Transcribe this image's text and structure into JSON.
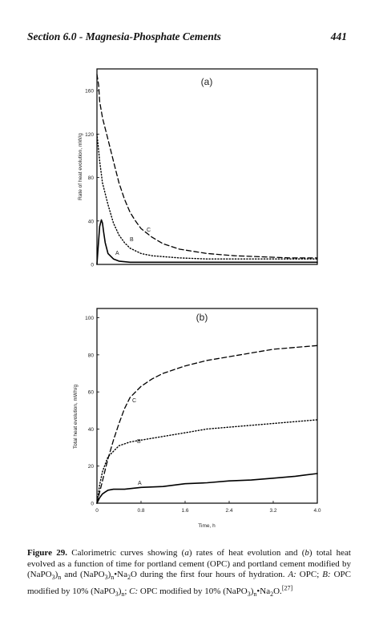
{
  "header": {
    "section": "Section 6.0 - Magnesia-Phosphate Cements",
    "page_number": "441"
  },
  "figure": {
    "caption_label": "Figure 29.",
    "caption_segments": [
      {
        "t": "Calorimetric curves showing ("
      },
      {
        "t": "a",
        "i": true
      },
      {
        "t": ") rates of heat evolution and ("
      },
      {
        "t": "b",
        "i": true
      },
      {
        "t": ") total heat evolved as a function of time for portland cement (OPC) and portland cement modified by (NaPO"
      },
      {
        "t": "3",
        "sub": true
      },
      {
        "t": ")"
      },
      {
        "t": "n",
        "sub": true
      },
      {
        "t": " and (NaPO"
      },
      {
        "t": "3",
        "sub": true
      },
      {
        "t": ")"
      },
      {
        "t": "n",
        "sub": true
      },
      {
        "t": "•Na"
      },
      {
        "t": "2",
        "sub": true
      },
      {
        "t": "O during the first four hours of hydration. "
      },
      {
        "t": "A:",
        "i": true
      },
      {
        "t": " OPC; "
      },
      {
        "t": "B:",
        "i": true
      },
      {
        "t": " OPC modified by 10% (NaPO"
      },
      {
        "t": "3",
        "sub": true
      },
      {
        "t": ")"
      },
      {
        "t": "n",
        "sub": true
      },
      {
        "t": "; "
      },
      {
        "t": "C:",
        "i": true
      },
      {
        "t": " OPC modified by 10% (NaPO"
      },
      {
        "t": "3",
        "sub": true
      },
      {
        "t": ")"
      },
      {
        "t": "n",
        "sub": true
      },
      {
        "t": "•Na"
      },
      {
        "t": "2",
        "sub": true
      },
      {
        "t": "O."
      },
      {
        "t": "[27]",
        "sup": true
      }
    ]
  },
  "chart_data": [
    {
      "type": "line",
      "panel_label": "(a)",
      "ylabel": "Rate of heat evolution, mW/g",
      "xlabel": "",
      "xlim": [
        0,
        4.0
      ],
      "ylim": [
        0,
        180
      ],
      "yticks": [
        "0",
        "40",
        "80",
        "120",
        "160"
      ],
      "xticks": [],
      "series": [
        {
          "name": "A",
          "style": "solid",
          "x": [
            0,
            0.02,
            0.05,
            0.08,
            0.1,
            0.12,
            0.15,
            0.2,
            0.3,
            0.4,
            0.6,
            1.0,
            2.0,
            3.0,
            4.0
          ],
          "y": [
            0,
            15,
            35,
            41,
            38,
            30,
            20,
            10,
            5,
            3,
            2,
            2,
            2,
            2,
            2
          ]
        },
        {
          "name": "B",
          "style": "dotted",
          "x": [
            0,
            0.02,
            0.05,
            0.1,
            0.2,
            0.3,
            0.4,
            0.5,
            0.6,
            0.8,
            1.0,
            1.5,
            2.0,
            3.0,
            4.0
          ],
          "y": [
            120,
            110,
            95,
            75,
            55,
            38,
            27,
            20,
            15,
            10,
            8,
            6,
            5,
            5,
            5
          ]
        },
        {
          "name": "C",
          "style": "dashed",
          "x": [
            0,
            0.03,
            0.05,
            0.1,
            0.2,
            0.3,
            0.4,
            0.5,
            0.6,
            0.7,
            0.8,
            1.0,
            1.2,
            1.5,
            2.0,
            2.5,
            3.0,
            3.5,
            4.0
          ],
          "y": [
            175,
            165,
            150,
            135,
            115,
            95,
            75,
            60,
            48,
            40,
            33,
            25,
            19,
            14,
            10,
            8,
            7,
            6,
            6
          ]
        }
      ],
      "annotations": [
        "A",
        "B",
        "C"
      ]
    },
    {
      "type": "line",
      "panel_label": "(b)",
      "ylabel": "Total heat evolution, mWh/g",
      "xlabel": "Time, h",
      "xlim": [
        0,
        4.0
      ],
      "ylim": [
        0,
        105
      ],
      "yticks": [
        "0",
        "20",
        "40",
        "60",
        "80",
        "100"
      ],
      "xticks": [
        "0",
        "0.8",
        "1.6",
        "2.4",
        "3.2",
        "4.0"
      ],
      "series": [
        {
          "name": "A",
          "style": "solid",
          "x": [
            0,
            0.05,
            0.1,
            0.15,
            0.2,
            0.3,
            0.5,
            0.8,
            1.2,
            1.6,
            2.0,
            2.4,
            2.8,
            3.2,
            3.6,
            4.0
          ],
          "y": [
            0,
            3,
            5,
            6,
            7,
            7.5,
            7.5,
            8.5,
            9,
            10.5,
            11,
            12,
            12.5,
            13.5,
            14.5,
            16
          ]
        },
        {
          "name": "B",
          "style": "dotted",
          "x": [
            0,
            0.05,
            0.1,
            0.15,
            0.2,
            0.3,
            0.4,
            0.6,
            0.8,
            1.2,
            1.6,
            2.0,
            2.4,
            2.8,
            3.2,
            3.6,
            4.0
          ],
          "y": [
            0,
            10,
            17,
            21,
            25,
            28,
            31,
            33,
            34,
            36,
            38,
            40,
            41,
            42,
            43,
            44,
            45
          ]
        },
        {
          "name": "C",
          "style": "dashed",
          "x": [
            0,
            0.05,
            0.1,
            0.15,
            0.2,
            0.3,
            0.4,
            0.5,
            0.6,
            0.8,
            1.0,
            1.2,
            1.6,
            2.0,
            2.4,
            2.8,
            3.2,
            3.6,
            4.0
          ],
          "y": [
            0,
            6,
            12,
            18,
            24,
            34,
            43,
            51,
            57,
            63,
            67,
            70,
            74,
            77,
            79,
            81,
            83,
            84,
            85
          ]
        }
      ],
      "annotations": [
        "A",
        "B",
        "C"
      ]
    }
  ]
}
